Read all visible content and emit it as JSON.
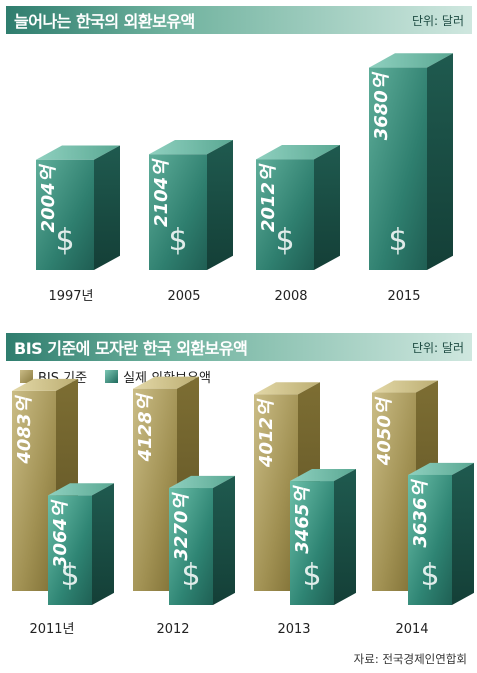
{
  "chart_data": [
    {
      "type": "bar",
      "title": "늘어나는 한국의 외환보유액",
      "unit": "단위: 달러",
      "categories": [
        "1997년",
        "2005",
        "2008",
        "2015"
      ],
      "values": [
        2004,
        2104,
        2012,
        3680
      ],
      "value_labels": [
        "2004억",
        "2104억",
        "2012억",
        "3680억"
      ],
      "value_unit": "억 달러",
      "colors": {
        "bar": "#2e7f6f"
      }
    },
    {
      "type": "bar",
      "title": "BIS 기준에 모자란 한국 외환보유액",
      "unit": "단위: 달러",
      "categories": [
        "2011년",
        "2012",
        "2013",
        "2014"
      ],
      "series": [
        {
          "name": "BIS 기준",
          "values": [
            4083,
            4128,
            4012,
            4050
          ],
          "labels": [
            "4083억",
            "4128억",
            "4012억",
            "4050억"
          ]
        },
        {
          "name": "실제 외환보유액",
          "values": [
            3064,
            3270,
            3465,
            3636
          ],
          "labels": [
            "3064억",
            "3270억",
            "3465억",
            "3636억"
          ]
        }
      ],
      "value_unit": "억 달러",
      "colors": {
        "bis": "#a99a5a",
        "actual": "#2e7f6f"
      }
    }
  ],
  "source": "자료: 전국경제인연합회"
}
